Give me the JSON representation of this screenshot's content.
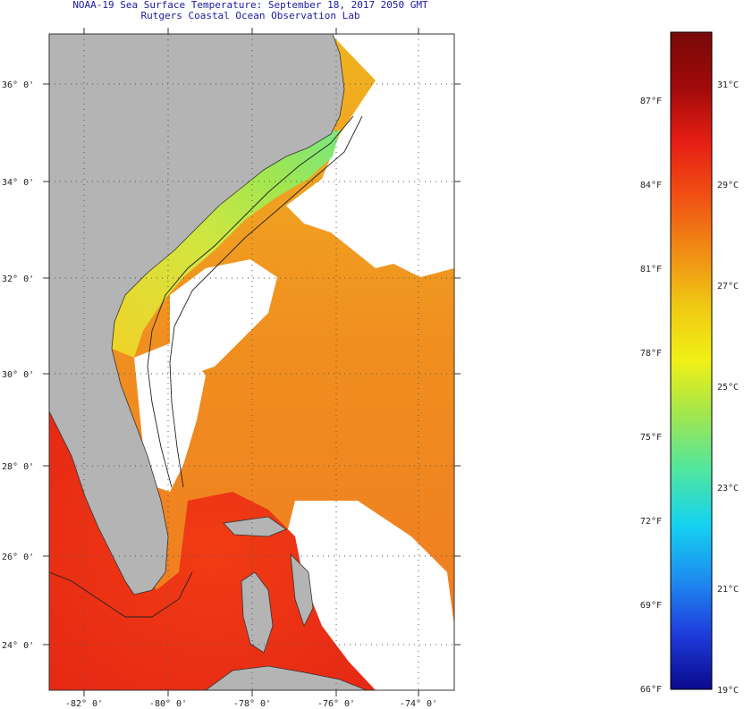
{
  "title": {
    "line1": "NOAA-19 Sea Surface Temperature:  September 18, 2017 2050 GMT",
    "line2": "Rutgers Coastal Ocean Observation Lab"
  },
  "map": {
    "lat_labels": [
      "36° 0'",
      "34° 0'",
      "32° 0'",
      "30° 0'",
      "28° 0'",
      "26° 0'",
      "24° 0'"
    ],
    "lon_labels": [
      "-82° 0'",
      "-80° 0'",
      "-78° 0'",
      "-76° 0'",
      "-74° 0'"
    ],
    "colors": {
      "land": "#b4b4b4",
      "cloud": "#ffffff",
      "grid": "#555555"
    }
  },
  "colorbar": {
    "fahrenheit": [
      "87°F",
      "84°F",
      "81°F",
      "78°F",
      "75°F",
      "72°F",
      "69°F",
      "66°F"
    ],
    "celsius": [
      "31°C",
      "29°C",
      "27°C",
      "25°C",
      "23°C",
      "21°C",
      "19°C"
    ],
    "colors": [
      "#0a0a8c",
      "#1e3cdc",
      "#1e8cf0",
      "#14d2f0",
      "#50e6a0",
      "#a0e650",
      "#f0f014",
      "#f0c814",
      "#f08c14",
      "#f05014",
      "#e61e14",
      "#a00a0a",
      "#780a0a"
    ]
  }
}
